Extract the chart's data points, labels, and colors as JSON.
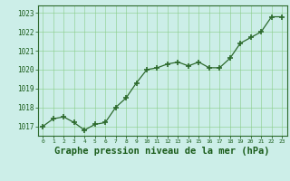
{
  "x": [
    0,
    1,
    2,
    3,
    4,
    5,
    6,
    7,
    8,
    9,
    10,
    11,
    12,
    13,
    14,
    15,
    16,
    17,
    18,
    19,
    20,
    21,
    22,
    23
  ],
  "y": [
    1017.0,
    1017.4,
    1017.5,
    1017.2,
    1016.8,
    1017.1,
    1017.2,
    1018.0,
    1018.5,
    1019.3,
    1020.0,
    1020.1,
    1020.3,
    1020.4,
    1020.2,
    1020.4,
    1020.1,
    1020.1,
    1020.6,
    1021.4,
    1021.7,
    1022.0,
    1022.8,
    1022.8
  ],
  "line_color": "#2d6a2d",
  "marker_color": "#2d6a2d",
  "bg_color": "#cceee8",
  "grid_color": "#88cc88",
  "title": "Graphe pression niveau de la mer (hPa)",
  "title_color": "#1a5c1a",
  "title_fontsize": 7.5,
  "tick_color": "#1a5c1a",
  "ylim_min": 1016.5,
  "ylim_max": 1023.4,
  "ytick_labels": [
    "1017",
    "1018",
    "1019",
    "1020",
    "1021",
    "1022",
    "1023"
  ],
  "ytick_values": [
    1017,
    1018,
    1019,
    1020,
    1021,
    1022,
    1023
  ],
  "xtick_labels": [
    "0",
    "1",
    "2",
    "3",
    "4",
    "5",
    "6",
    "7",
    "8",
    "9",
    "10",
    "11",
    "12",
    "13",
    "14",
    "15",
    "16",
    "17",
    "18",
    "19",
    "20",
    "21",
    "22",
    "23"
  ],
  "border_color": "#2d6a2d"
}
